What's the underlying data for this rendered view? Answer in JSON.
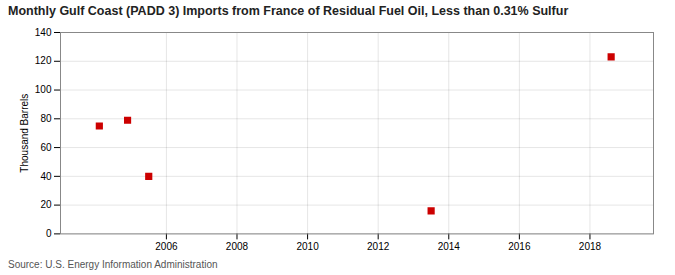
{
  "chart_data": {
    "type": "scatter",
    "title": "Monthly Gulf Coast (PADD 3) Imports from France of Residual Fuel Oil, Less than 0.31% Sulfur",
    "ylabel": "Thousand Barrels",
    "source": "Source: U.S. Energy Information Administration",
    "x": [
      2004.1,
      2004.9,
      2005.5,
      2013.5,
      2018.6
    ],
    "values": [
      75,
      79,
      40,
      16,
      123
    ],
    "color": "#cc0000",
    "marker": "square",
    "xlim": [
      2003.0,
      2019.8
    ],
    "ylim": [
      0,
      140
    ],
    "xticks": [
      2006,
      2008,
      2010,
      2012,
      2014,
      2016,
      2018
    ],
    "yticks": [
      0,
      20,
      40,
      60,
      80,
      100,
      120,
      140
    ],
    "grid": true
  }
}
